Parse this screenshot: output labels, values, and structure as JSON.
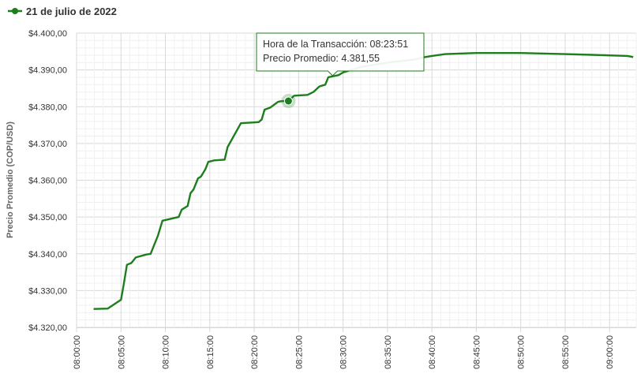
{
  "chart_data": {
    "type": "line",
    "title": "",
    "ylabel": "Precio Promedio (COP/USD)",
    "xlabel": "",
    "ylim": [
      4320,
      4400
    ],
    "y_ticks": [
      "$4.320,00",
      "$4.330,00",
      "$4.340,00",
      "$4.350,00",
      "$4.360,00",
      "$4.370,00",
      "$4.380,00",
      "$4.390,00",
      "$4.400,00"
    ],
    "x_range_min": [
      480,
      543
    ],
    "x_ticks": [
      "08:00:00",
      "08:05:00",
      "08:10:00",
      "08:15:00",
      "08:20:00",
      "08:25:00",
      "08:30:00",
      "08:35:00",
      "08:40:00",
      "08:45:00",
      "08:50:00",
      "08:55:00",
      "09:00:00"
    ],
    "grid": true,
    "legend_position": "top-left",
    "series": [
      {
        "name": "21 de julio de 2022",
        "color": "#1e7e1e",
        "x": [
          "08:01:55",
          "08:03:30",
          "08:05:00",
          "08:05:20",
          "08:05:40",
          "08:06:10",
          "08:06:40",
          "08:07:50",
          "08:08:20",
          "08:08:50",
          "08:09:10",
          "08:09:40",
          "08:11:30",
          "08:11:50",
          "08:12:30",
          "08:12:50",
          "08:13:10",
          "08:13:40",
          "08:14:00",
          "08:14:30",
          "08:14:50",
          "08:15:30",
          "08:16:40",
          "08:17:00",
          "08:18:30",
          "08:20:30",
          "08:20:50",
          "08:21:10",
          "08:21:50",
          "08:22:20",
          "08:22:40",
          "08:23:00",
          "08:23:51",
          "08:24:30",
          "08:26:00",
          "08:26:40",
          "08:27:20",
          "08:28:00",
          "08:28:20",
          "08:29:30",
          "08:30:00",
          "08:32:00",
          "08:35:00",
          "08:38:00",
          "08:39:00",
          "08:40:00",
          "08:41:30",
          "08:45:00",
          "08:50:00",
          "08:55:00",
          "08:58:00",
          "09:02:00",
          "09:02:40"
        ],
        "values": [
          4325.0,
          4325.1,
          4327.5,
          4332.0,
          4337.0,
          4337.5,
          4339.0,
          4339.8,
          4340.0,
          4343.0,
          4345.0,
          4349.0,
          4350.0,
          4352.0,
          4353.0,
          4356.5,
          4357.5,
          4360.5,
          4361.0,
          4363.0,
          4365.0,
          4365.4,
          4365.6,
          4369.0,
          4375.5,
          4375.8,
          4376.5,
          4379.2,
          4379.8,
          4380.7,
          4381.3,
          4381.5,
          4381.55,
          4383.0,
          4383.2,
          4384.0,
          4385.5,
          4386.0,
          4388.0,
          4388.6,
          4389.3,
          4390.8,
          4392.0,
          4392.8,
          4393.4,
          4393.8,
          4394.3,
          4394.6,
          4394.6,
          4394.3,
          4394.1,
          4393.8,
          4393.5
        ]
      }
    ],
    "highlight": {
      "x": "08:23:51",
      "value": 4381.55
    }
  },
  "legend": {
    "label": "21 de julio de 2022"
  },
  "tooltip": {
    "line1": "Hora de la Transacción: 08:23:51",
    "line2": "Precio Promedio: 4.381,55"
  }
}
